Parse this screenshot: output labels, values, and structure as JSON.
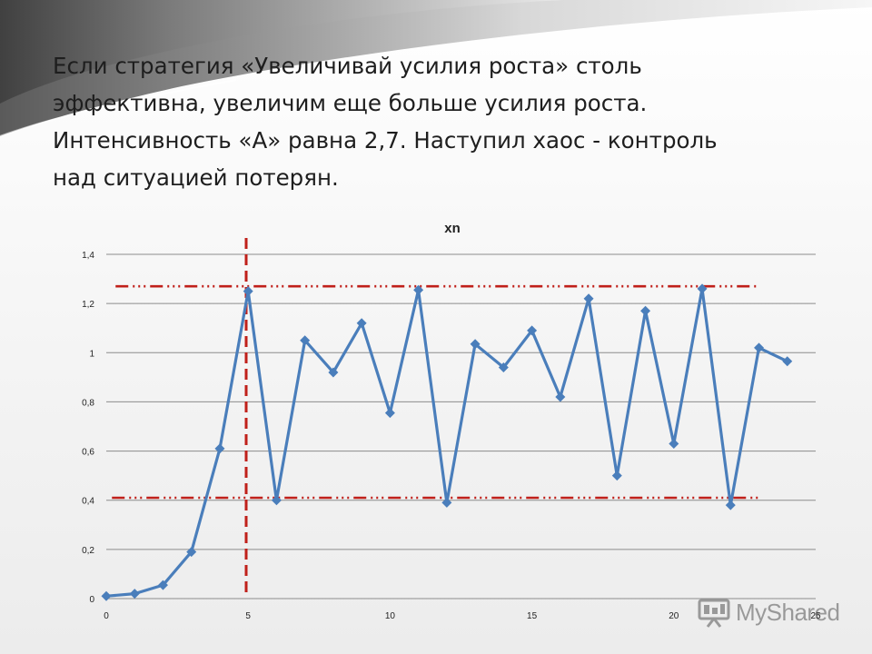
{
  "slide": {
    "lines": [
      "Если стратегия «Увеличивай усилия роста» столь",
      "эффективна, увеличим еще больше усилия роста.",
      "Интенсивность «А» равна 2,7. Наступил хаос - контроль",
      "над ситуацией потерян."
    ]
  },
  "watermark": {
    "text": "MyShared"
  },
  "chart_data": {
    "type": "line",
    "title": "xn",
    "xlim": [
      0,
      25
    ],
    "ylim": [
      0,
      1.4
    ],
    "x_ticks": [
      0,
      5,
      10,
      15,
      20,
      25
    ],
    "x_tick_labels": [
      "0",
      "5",
      "10",
      "15",
      "20",
      "25"
    ],
    "y_ticks": [
      0,
      0.2,
      0.4,
      0.6,
      0.8,
      1,
      1.2,
      1.4
    ],
    "y_tick_labels": [
      "0",
      "0,2",
      "0,4",
      "0,6",
      "0,8",
      "1",
      "1,2",
      "1,4"
    ],
    "grid": "horizontal",
    "series": [
      {
        "color": "#4a7ebb",
        "marker": "diamond",
        "x": [
          0,
          1,
          2,
          3,
          4,
          5,
          6,
          7,
          8,
          9,
          10,
          11,
          12,
          13,
          14,
          15,
          16,
          17,
          18,
          19,
          20,
          21,
          22,
          23,
          24
        ],
        "y": [
          0.01,
          0.02,
          0.055,
          0.19,
          0.61,
          1.25,
          0.4,
          1.05,
          0.92,
          1.12,
          0.755,
          1.255,
          0.39,
          1.035,
          0.94,
          1.09,
          0.82,
          1.22,
          0.5,
          1.17,
          0.63,
          1.26,
          0.38,
          1.02,
          0.965
        ]
      }
    ],
    "annotations": {
      "upper_bound_y": 1.27,
      "lower_bound_y": 0.41,
      "bound_x_range": [
        0.2,
        23
      ],
      "vertical_marker_x": 4.93,
      "annotation_color": "#c0201a"
    }
  }
}
